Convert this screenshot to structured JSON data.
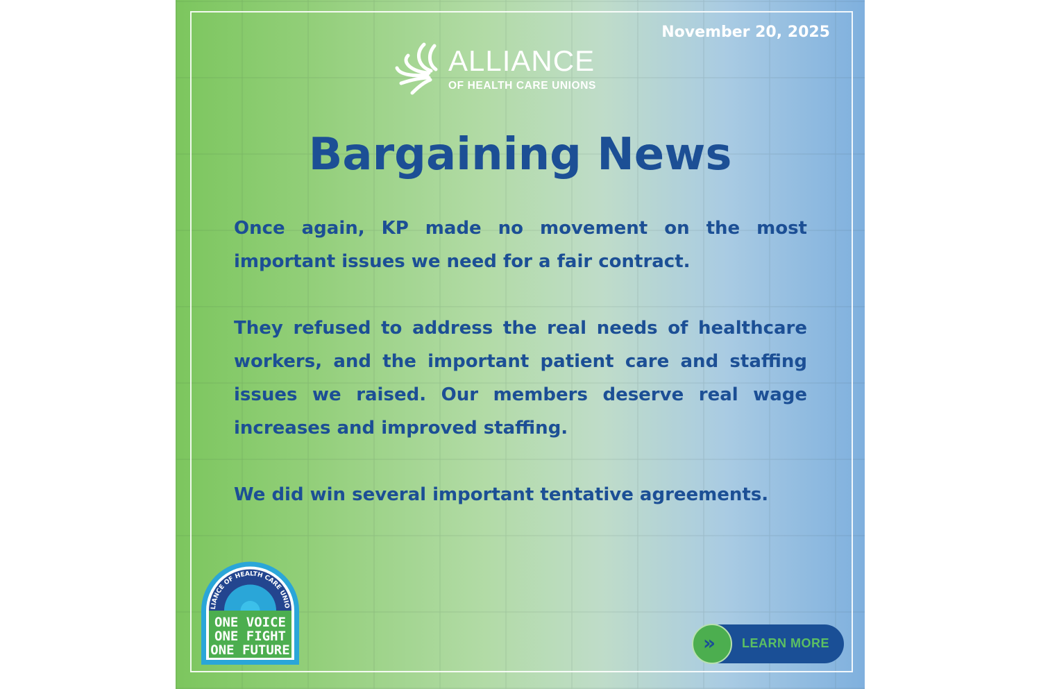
{
  "date": "November 20, 2025",
  "logo": {
    "name": "ALLIANCE",
    "subtitle": "OF HEALTH CARE UNIONS"
  },
  "title": "Bargaining News",
  "paragraphs": [
    "Once again, KP made no movement on the most important issues we need for a fair contract.",
    "They refused to address the real needs of healthcare workers, and the important patient care and staffing issues we raised. Our members deserve real wage increases and improved staffing.",
    "We did win several important tentative agreements."
  ],
  "badge": {
    "arc_text": "ALLIANCE OF HEALTH CARE UNIONS",
    "lines": [
      "ONE VOICE",
      "ONE FIGHT",
      "ONE FUTURE"
    ]
  },
  "cta": {
    "label": "LEARN MORE",
    "icon": "double-chevron-right-icon"
  },
  "colors": {
    "title": "#1c4f95",
    "button": "#1a4f96",
    "button_accent": "#4cae4f"
  }
}
